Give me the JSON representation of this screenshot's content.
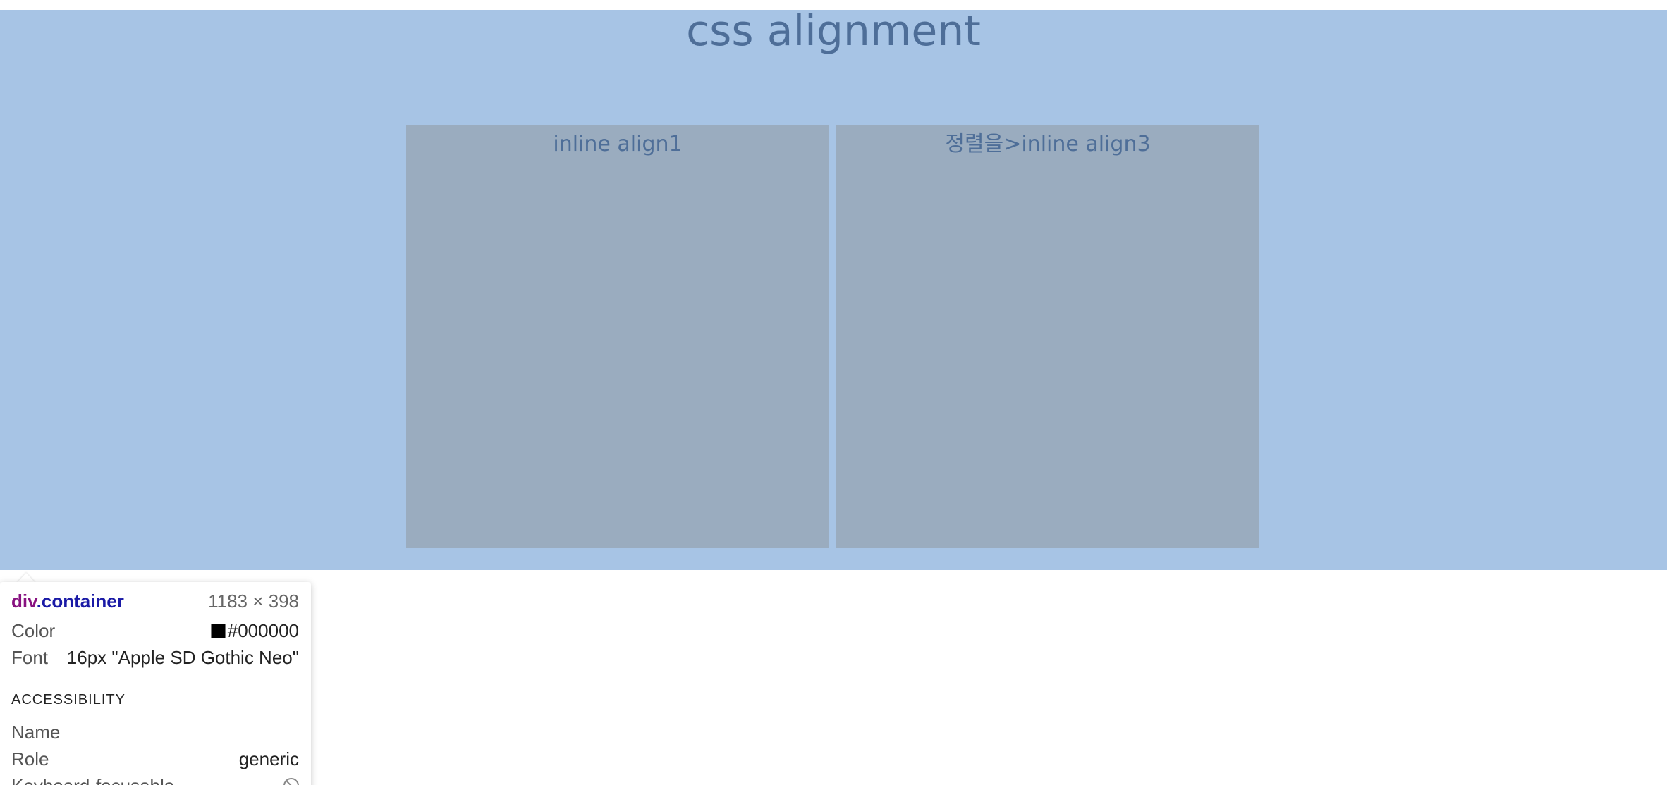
{
  "page": {
    "title": "css alignment",
    "boxes": [
      {
        "label": "inline align1"
      },
      {
        "label": "정렬을>inline align3"
      }
    ]
  },
  "inspector": {
    "tag": "div",
    "class_name": ".container",
    "dimensions": "1183 × 398",
    "color_label": "Color",
    "color_value": "#000000",
    "font_label": "Font",
    "font_value": "16px \"Apple SD Gothic Neo\"",
    "section_title": "ACCESSIBILITY",
    "name_label": "Name",
    "name_value": "",
    "role_label": "Role",
    "role_value": "generic",
    "focusable_label": "Keyboard-focusable",
    "focusable_icon": "not-allowed-icon"
  },
  "colors": {
    "container_bg": "#a7c4e5",
    "box_bg": "#9aacbf",
    "text": "#4e6e98"
  }
}
